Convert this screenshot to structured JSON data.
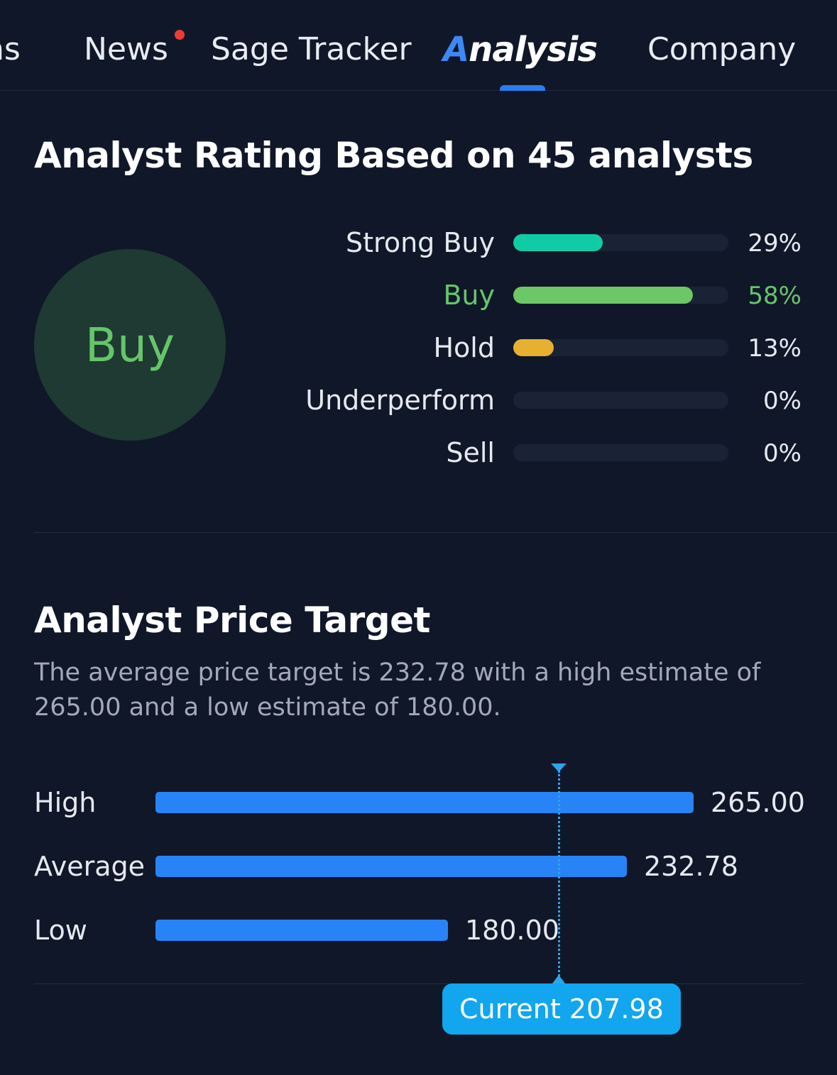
{
  "tabs": {
    "partial": "ns",
    "news": "News",
    "sage_tracker": "Sage Tracker",
    "analysis_first": "A",
    "analysis_rest": "nalysis",
    "company": "Company"
  },
  "rating": {
    "title": "Analyst Rating Based on 45 analysts",
    "consensus": "Buy",
    "rows": [
      {
        "label": "Strong Buy",
        "percent_text": "29%",
        "percent": 29,
        "color": "#10cca6",
        "selected": false
      },
      {
        "label": "Buy",
        "percent_text": "58%",
        "percent": 58,
        "color": "#6cc766",
        "selected": true
      },
      {
        "label": "Hold",
        "percent_text": "13%",
        "percent": 13,
        "color": "#e8b031",
        "selected": false
      },
      {
        "label": "Underperform",
        "percent_text": "0%",
        "percent": 0,
        "color": "#e87b31",
        "selected": false
      },
      {
        "label": "Sell",
        "percent_text": "0%",
        "percent": 0,
        "color": "#e8453c",
        "selected": false
      }
    ]
  },
  "price_target": {
    "title": "Analyst Price Target",
    "description": "The average price target is 232.78 with a high estimate of 265.00 and a low estimate of 180.00.",
    "rows": [
      {
        "label": "High",
        "value_text": "265.00",
        "value": 265.0
      },
      {
        "label": "Average",
        "value_text": "232.78",
        "value": 232.78
      },
      {
        "label": "Low",
        "value_text": "180.00",
        "value": 180.0
      }
    ],
    "current_label": "Current 207.98",
    "current_value": 207.98,
    "bar_color": "#2884f6",
    "current_color": "#11a6ee"
  }
}
